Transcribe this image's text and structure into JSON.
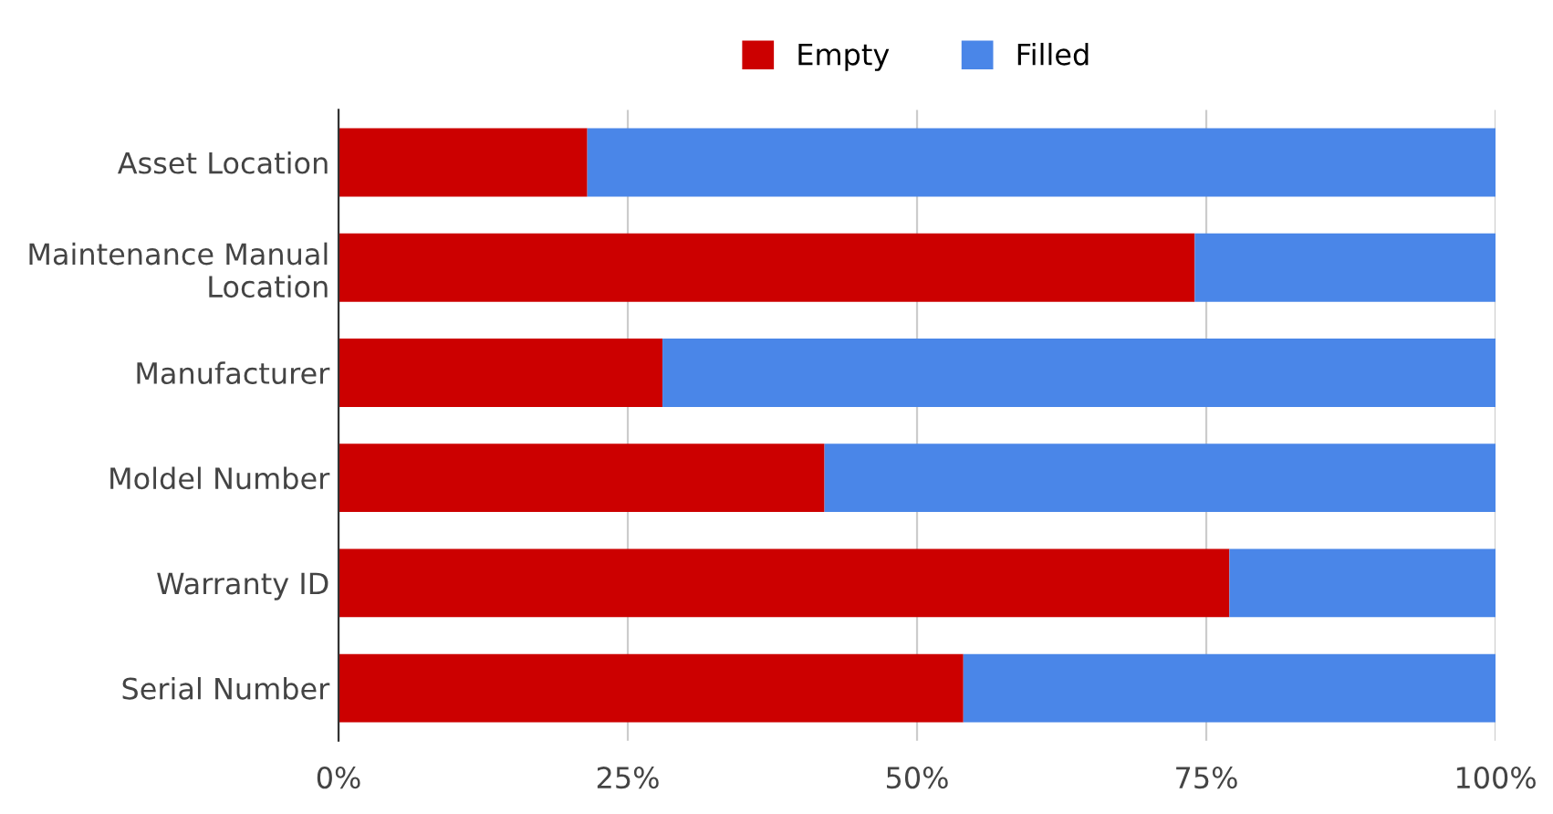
{
  "chart_data": {
    "type": "bar",
    "orientation": "horizontal",
    "stacked": true,
    "categories": [
      "Asset Location",
      "Maintenance Manual\nLocation",
      "Manufacturer",
      "Moldel Number",
      "Warranty ID",
      "Serial Number"
    ],
    "series": [
      {
        "name": "Empty",
        "color": "#cc0000",
        "values": [
          21.5,
          74,
          28,
          42,
          77,
          54
        ]
      },
      {
        "name": "Filled",
        "color": "#4a86e8",
        "values": [
          78.5,
          26,
          72,
          58,
          23,
          46
        ]
      }
    ],
    "xlim": [
      0,
      100
    ],
    "xticks": [
      {
        "value": 0,
        "label": "0%"
      },
      {
        "value": 25,
        "label": "25%"
      },
      {
        "value": 50,
        "label": "50%"
      },
      {
        "value": 75,
        "label": "75%"
      },
      {
        "value": 100,
        "label": "100%"
      }
    ],
    "grid": "x",
    "legend": "top"
  }
}
